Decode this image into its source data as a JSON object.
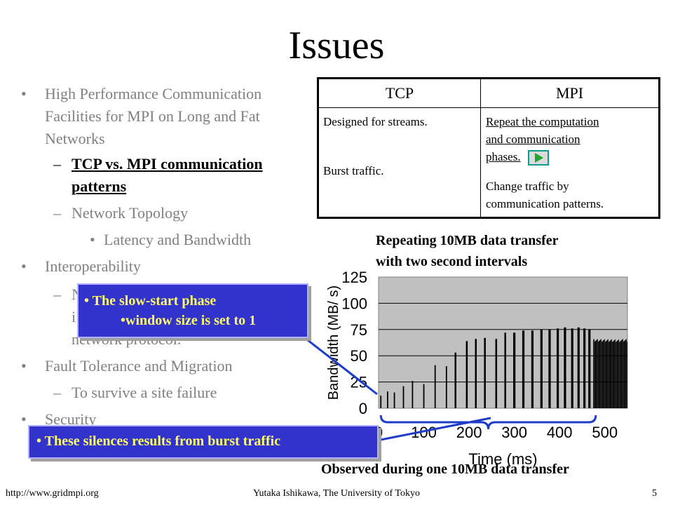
{
  "slide": {
    "title": "Issues",
    "bullets": [
      {
        "text": "High Performance Communication",
        "cont": [
          "Facilities for MPI on Long and Fat",
          "Networks"
        ]
      },
      {
        "text": "TCP vs. MPI communication",
        "cont": [
          "patterns"
        ]
      },
      {
        "text": "Network Topology"
      },
      {
        "text": "Latency and Bandwidth"
      },
      {
        "text": "Interoperability"
      },
      {
        "text": "N",
        "cont": [
          "i",
          "network protocol."
        ]
      },
      {
        "text": "Fault Tolerance and Migration"
      },
      {
        "text": "To survive a site failure"
      },
      {
        "text": "Security"
      }
    ]
  },
  "table": {
    "col1": "TCP",
    "col2": "MPI",
    "tcp_lines": [
      "Designed for streams.",
      "Burst traffic."
    ],
    "mpi_lines": [
      "Repeat the computation",
      "and communication",
      "phases.",
      "Change traffic by",
      "communication patterns."
    ]
  },
  "callouts": {
    "slow_start": "The slow-start phase",
    "window": "•window size is set to 1",
    "silence": "These silences results from burst traffic"
  },
  "chart_heading": [
    "Repeating 10MB data transfer",
    "with two second intervals"
  ],
  "chart_footer": "Observed during one 10MB data transfer",
  "chart_data": {
    "type": "bar",
    "xlabel": "Time (ms)",
    "ylabel": "Bandwidth (MB/ s)",
    "xlim": [
      0,
      550
    ],
    "ylim": [
      0,
      125
    ],
    "xticks": [
      "0",
      "100",
      "200",
      "300",
      "400",
      "500"
    ],
    "yticks": [
      "0",
      "25",
      "50",
      "75",
      "100",
      "125"
    ],
    "bursts": [
      {
        "t": 5,
        "h": 12
      },
      {
        "t": 20,
        "h": 16
      },
      {
        "t": 35,
        "h": 15
      },
      {
        "t": 55,
        "h": 21
      },
      {
        "t": 75,
        "h": 26
      },
      {
        "t": 100,
        "h": 23
      },
      {
        "t": 125,
        "h": 41
      },
      {
        "t": 150,
        "h": 40
      },
      {
        "t": 170,
        "h": 53
      },
      {
        "t": 195,
        "h": 64
      },
      {
        "t": 215,
        "h": 66
      },
      {
        "t": 235,
        "h": 67
      },
      {
        "t": 260,
        "h": 66
      },
      {
        "t": 280,
        "h": 72
      },
      {
        "t": 300,
        "h": 72
      },
      {
        "t": 320,
        "h": 74
      },
      {
        "t": 340,
        "h": 74
      },
      {
        "t": 360,
        "h": 75
      },
      {
        "t": 378,
        "h": 75
      },
      {
        "t": 396,
        "h": 76
      },
      {
        "t": 412,
        "h": 77
      },
      {
        "t": 428,
        "h": 76
      },
      {
        "t": 442,
        "h": 77
      },
      {
        "t": 455,
        "h": 76
      },
      {
        "t": 466,
        "h": 75
      }
    ],
    "plateau": {
      "start": 475,
      "end": 550,
      "h": 64
    }
  },
  "footer": {
    "left": "http://www.gridmpi.org",
    "center": "Yutaka Ishikawa, The University of Tokyo",
    "page": "5"
  },
  "colors": {
    "callout_bg": "#3232cc",
    "callout_text": "#ffff66",
    "plot_bg": "#c0c0c0",
    "bracket": "#1e3cc8"
  }
}
